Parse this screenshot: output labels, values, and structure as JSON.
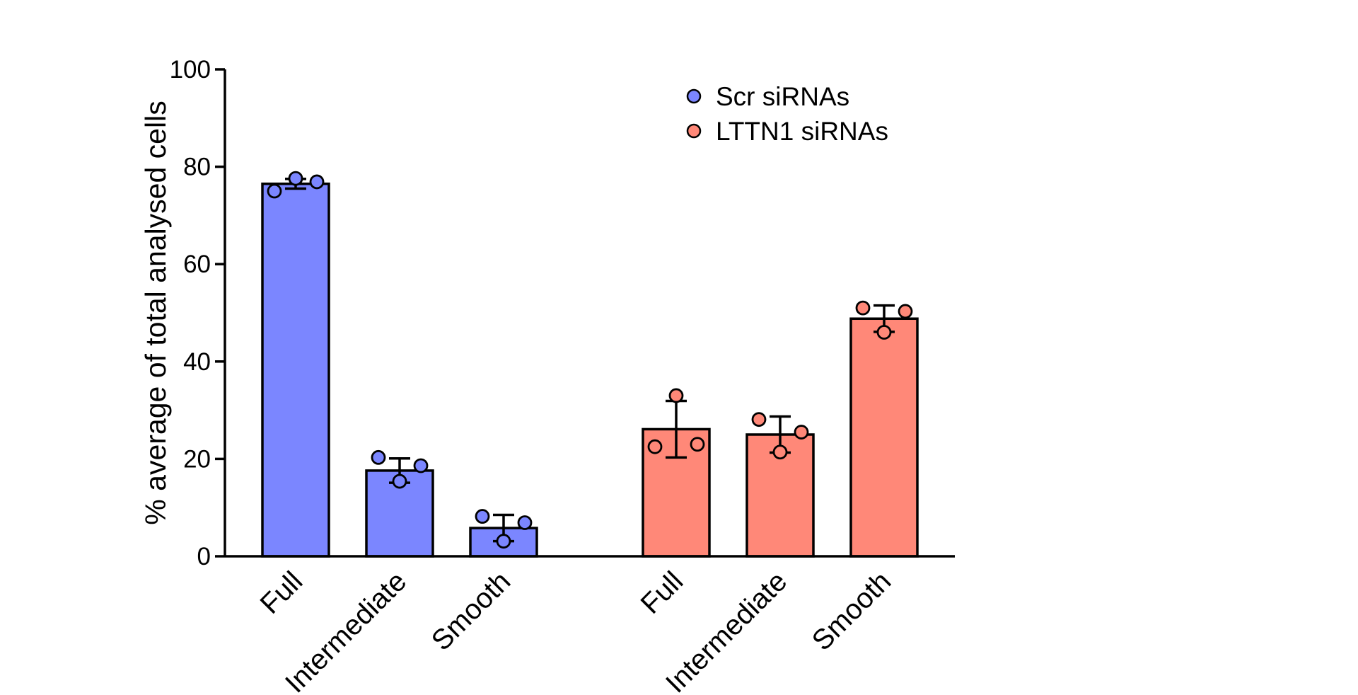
{
  "chart_data": {
    "type": "bar",
    "title": "",
    "xlabel": "",
    "ylabel": "% average of total analysed cells",
    "ylim": [
      0,
      100
    ],
    "yticks": [
      0,
      20,
      40,
      60,
      80,
      100
    ],
    "ytick_labels": [
      "0",
      "20",
      "40",
      "60",
      "80",
      "100"
    ],
    "grid": false,
    "legend_position": "top-right",
    "categories": [
      "Full",
      "Intermediate",
      "Smooth"
    ],
    "series": [
      {
        "name": "Scr siRNAs",
        "color": "#7b86ff",
        "values": [
          76.5,
          17.6,
          5.8
        ],
        "error": [
          1.0,
          2.5,
          2.7
        ],
        "points": [
          [
            75.0,
            77.6,
            76.9
          ],
          [
            20.3,
            15.4,
            18.6
          ],
          [
            8.2,
            3.1,
            6.9
          ]
        ]
      },
      {
        "name": "LTTN1 siRNAs",
        "color": "#ff8878",
        "values": [
          26.1,
          25.0,
          48.8
        ],
        "error": [
          5.8,
          3.7,
          2.7
        ],
        "points": [
          [
            22.5,
            33.0,
            23.0
          ],
          [
            28.1,
            21.4,
            25.5
          ],
          [
            51.0,
            46.0,
            50.3
          ]
        ]
      }
    ]
  }
}
